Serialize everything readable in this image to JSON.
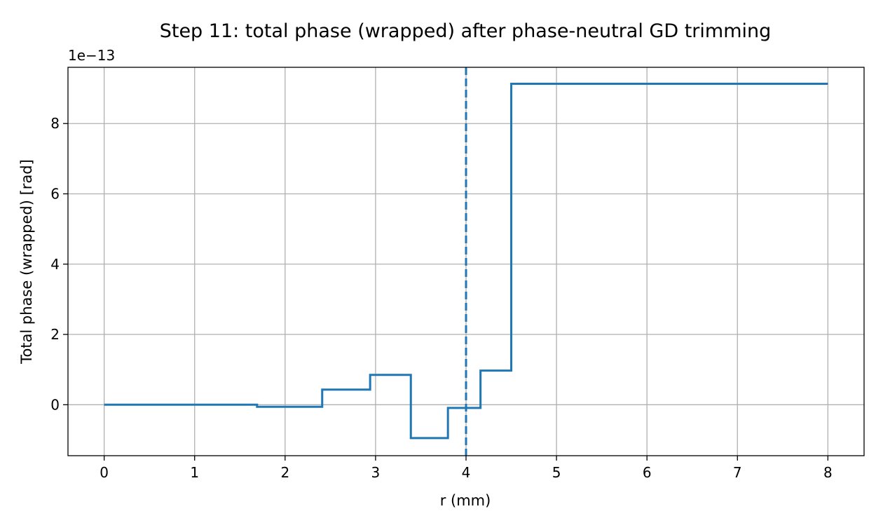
{
  "chart_data": {
    "type": "line",
    "title": "Step 11: total phase (wrapped) after phase-neutral GD trimming",
    "xlabel": "r (mm)",
    "ylabel": "Total phase (wrapped) [rad]",
    "y_offset_label": "1e−13",
    "y_scale_exponent": -13,
    "xlim": [
      -0.4,
      8.4
    ],
    "ylim": [
      -1.45e-13,
      9.6e-13
    ],
    "xticks": [
      0,
      1,
      2,
      3,
      4,
      5,
      6,
      7,
      8
    ],
    "xtick_labels": [
      "0",
      "1",
      "2",
      "3",
      "4",
      "5",
      "6",
      "7",
      "8"
    ],
    "yticks": [
      0,
      2e-13,
      4e-13,
      6e-13,
      8e-13
    ],
    "ytick_labels": [
      "0",
      "2",
      "4",
      "6",
      "8"
    ],
    "grid": true,
    "series": [
      {
        "color": "#1f77b4",
        "style": "step",
        "x": [
          0,
          1.69,
          1.69,
          2.41,
          2.41,
          2.94,
          2.94,
          3.39,
          3.39,
          3.8,
          3.8,
          4.16,
          4.16,
          4.5,
          4.5,
          8
        ],
        "y": [
          0,
          0,
          -6e-15,
          -6e-15,
          4.3e-14,
          4.3e-14,
          8.5e-14,
          8.5e-14,
          -9.5e-14,
          -9.5e-14,
          -9e-15,
          -9e-15,
          9.7e-14,
          9.7e-14,
          9.13e-13,
          9.13e-13
        ]
      }
    ],
    "vlines": [
      {
        "x": 4.0,
        "color": "#1f77b4",
        "linestyle": "dashed"
      }
    ]
  }
}
